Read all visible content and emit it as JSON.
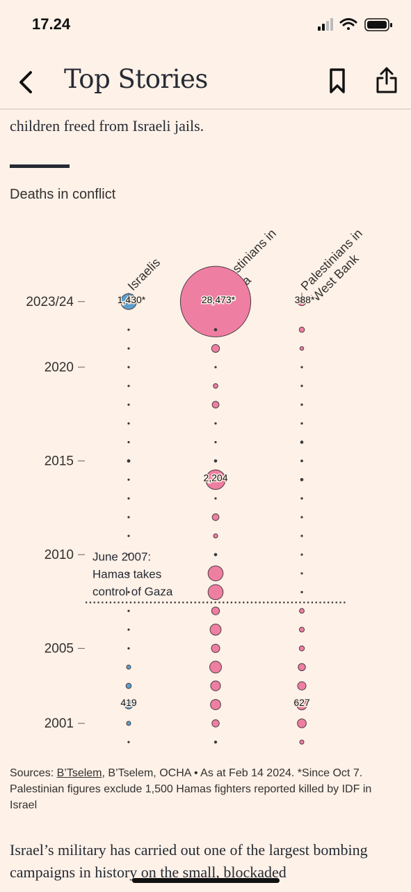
{
  "status": {
    "time": "17.24"
  },
  "nav": {
    "title": "Top Stories"
  },
  "article": {
    "intro_tail_partial": "...",
    "intro_tail": "children freed from Israeli jails.",
    "body_partial": "Israel’s military has carried out one of the largest bombing campaigns in history on the small, blockaded"
  },
  "chart": {
    "heading": "Deaths in conflict"
  },
  "chart_data": {
    "type": "scatter",
    "title": "Deaths in conflict",
    "columns": [
      "Israelis",
      "Palestinians in Gaza",
      "Palestinians in West Bank"
    ],
    "y_tick_labels": [
      "2023/24",
      "2020",
      "2015",
      "2010",
      "2005",
      "2001"
    ],
    "y_ticks_years": [
      2023.5,
      2020,
      2015,
      2010,
      2005,
      2001
    ],
    "years": [
      2000,
      2001,
      2002,
      2003,
      2004,
      2005,
      2006,
      2007,
      2008,
      2009,
      2010,
      2011,
      2012,
      2013,
      2014,
      2015,
      2016,
      2017,
      2018,
      2019,
      2020,
      2021,
      2022,
      2023.5
    ],
    "series": [
      {
        "name": "Israelis",
        "color": "#5a9ecf",
        "values": [
          10,
          100,
          419,
          160,
          100,
          30,
          15,
          8,
          10,
          3,
          5,
          10,
          5,
          3,
          5,
          65,
          10,
          5,
          5,
          3,
          5,
          10,
          25,
          1430
        ]
      },
      {
        "name": "Palestinians in Gaza",
        "color": "#ef7ea3",
        "values": [
          50,
          300,
          600,
          550,
          800,
          400,
          700,
          350,
          1300,
          1300,
          60,
          100,
          260,
          10,
          2204,
          60,
          10,
          30,
          260,
          120,
          20,
          350,
          60,
          28473
        ]
      },
      {
        "name": "Palestinians in West Bank",
        "color": "#ef7ea3",
        "values": [
          100,
          450,
          627,
          400,
          300,
          150,
          140,
          130,
          30,
          20,
          20,
          15,
          6,
          30,
          60,
          40,
          60,
          30,
          30,
          30,
          10,
          80,
          160,
          388
        ]
      }
    ],
    "labels": [
      {
        "series": 0,
        "year": 2023.5,
        "text": "1,430*"
      },
      {
        "series": 1,
        "year": 2023.5,
        "text": "28,473*"
      },
      {
        "series": 2,
        "year": 2023.5,
        "text": "388*"
      },
      {
        "series": 1,
        "year": 2014,
        "text": "2,204"
      },
      {
        "series": 0,
        "year": 2002,
        "text": "419"
      },
      {
        "series": 2,
        "year": 2002,
        "text": "627"
      }
    ],
    "annotation": {
      "year": 2007.45,
      "lines": [
        "June 2007:",
        "Hamas takes",
        "control of Gaza"
      ]
    }
  },
  "sources": {
    "prefix": "Sources: ",
    "link": "B’Tselem",
    "rest": ", B’Tselem, OCHA • As at Feb 14 2024. *Since Oct 7. Palestinian figures exclude 1,500 Hamas fighters reported killed by IDF in Israel"
  }
}
